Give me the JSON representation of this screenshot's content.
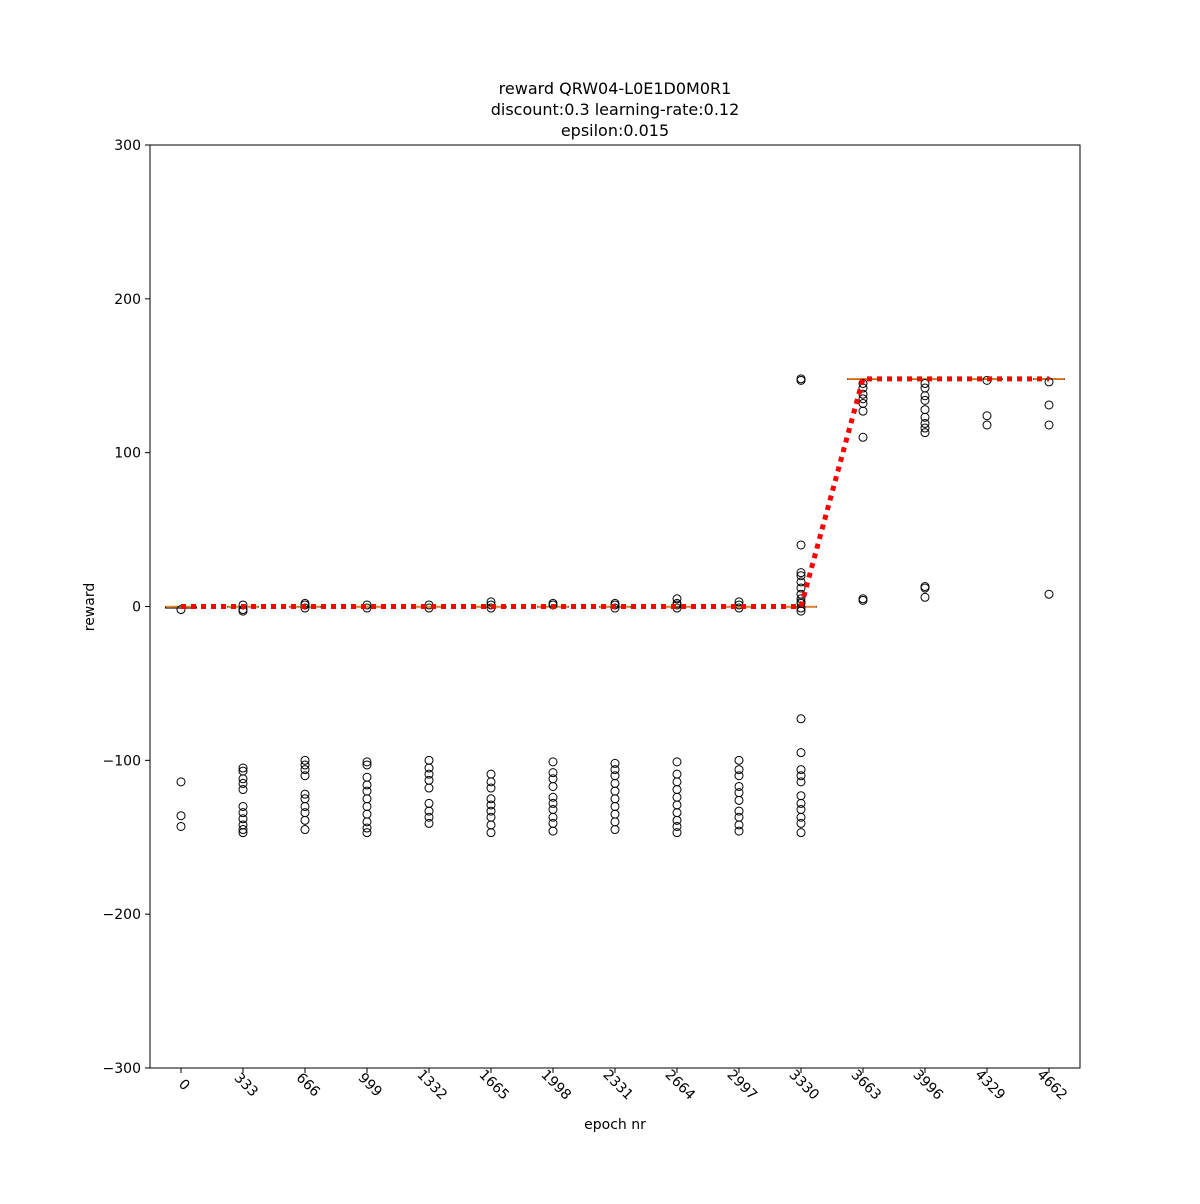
{
  "chart_data": {
    "type": "box",
    "title": [
      "reward QRW04-L0E1D0M0R1",
      "discount:0.3 learning-rate:0.12",
      "epsilon:0.015"
    ],
    "xlabel": "epoch nr",
    "ylabel": "reward",
    "categories": [
      "0",
      "333",
      "666",
      "999",
      "1332",
      "1665",
      "1998",
      "2331",
      "2664",
      "2997",
      "3330",
      "3663",
      "3996",
      "4329",
      "4662"
    ],
    "box_color": "#000000",
    "median_color": "#ff7f0e",
    "outlier_color": "#000000",
    "boxes": [
      {
        "q1": -1,
        "median": 0,
        "q3": 0,
        "whislo": -1,
        "whishi": 0,
        "fliers": [
          -2,
          -114,
          -136,
          -143
        ]
      },
      {
        "q1": 0,
        "median": 0,
        "q3": 0,
        "whislo": 0,
        "whishi": 0,
        "fliers": [
          1,
          -2,
          -3,
          -105,
          -107,
          -112,
          -115,
          -119,
          -130,
          -134,
          -138,
          -142,
          -145,
          -147
        ]
      },
      {
        "q1": 0,
        "median": 0,
        "q3": 0,
        "whislo": 0,
        "whishi": 0,
        "fliers": [
          2,
          1,
          -1,
          -100,
          -103,
          -106,
          -110,
          -122,
          -125,
          -130,
          -134,
          -139,
          -145
        ]
      },
      {
        "q1": 0,
        "median": 0,
        "q3": 0,
        "whislo": 0,
        "whishi": 0,
        "fliers": [
          1,
          -1,
          -101,
          -103,
          -111,
          -116,
          -120,
          -125,
          -130,
          -135,
          -140,
          -144,
          -147
        ]
      },
      {
        "q1": 0,
        "median": 0,
        "q3": 0,
        "whislo": 0,
        "whishi": 0,
        "fliers": [
          1,
          -1,
          -100,
          -105,
          -109,
          -113,
          -118,
          -128,
          -133,
          -137,
          -141
        ]
      },
      {
        "q1": 0,
        "median": 0,
        "q3": 0,
        "whislo": 0,
        "whishi": 0,
        "fliers": [
          3,
          1,
          -1,
          -109,
          -114,
          -118,
          -125,
          -129,
          -133,
          -137,
          -142,
          -147
        ]
      },
      {
        "q1": 0,
        "median": 0,
        "q3": 0,
        "whislo": 0,
        "whishi": 0,
        "fliers": [
          2,
          1,
          -101,
          -108,
          -112,
          -117,
          -124,
          -128,
          -132,
          -137,
          -141,
          -146
        ]
      },
      {
        "q1": 0,
        "median": 0,
        "q3": 0,
        "whislo": 0,
        "whishi": 0,
        "fliers": [
          2,
          1,
          -1,
          -102,
          -106,
          -110,
          -115,
          -120,
          -125,
          -130,
          -135,
          -140,
          -145
        ]
      },
      {
        "q1": 0,
        "median": 0,
        "q3": 0,
        "whislo": 0,
        "whishi": 0,
        "fliers": [
          5,
          2,
          1,
          -1,
          -101,
          -109,
          -114,
          -119,
          -124,
          -129,
          -134,
          -139,
          -143,
          -147
        ]
      },
      {
        "q1": 0,
        "median": 0,
        "q3": 0,
        "whislo": 0,
        "whishi": 0,
        "fliers": [
          3,
          1,
          -1,
          -100,
          -106,
          -110,
          -117,
          -121,
          -126,
          -133,
          -137,
          -142,
          -146
        ]
      },
      {
        "q1": 0,
        "median": 0,
        "q3": 0,
        "whislo": 0,
        "whishi": 0,
        "fliers": [
          148,
          147,
          40,
          22,
          20,
          16,
          12,
          8,
          5,
          3,
          2,
          -1,
          -3,
          -73,
          -95,
          -106,
          -110,
          -114,
          -123,
          -128,
          -132,
          -137,
          -141,
          -147
        ]
      },
      {
        "q1": 148,
        "median": 148,
        "q3": 148,
        "whislo": 148,
        "whishi": 148,
        "fliers": [
          145,
          142,
          138,
          135,
          132,
          127,
          110,
          5,
          4
        ]
      },
      {
        "q1": 148,
        "median": 148,
        "q3": 148,
        "whislo": 148,
        "whishi": 148,
        "fliers": [
          145,
          142,
          137,
          134,
          128,
          123,
          119,
          116,
          113,
          13,
          12,
          6
        ]
      },
      {
        "q1": 148,
        "median": 148,
        "q3": 148,
        "whislo": 148,
        "whishi": 148,
        "fliers": [
          147,
          124,
          118
        ]
      },
      {
        "q1": 148,
        "median": 148,
        "q3": 148,
        "whislo": 148,
        "whishi": 148,
        "fliers": [
          146,
          131,
          118,
          8
        ]
      }
    ],
    "trend": {
      "color": "#ff0000",
      "values": [
        0,
        0,
        0,
        0,
        0,
        0,
        0,
        0,
        0,
        0,
        0,
        148,
        148,
        148,
        148
      ]
    },
    "ylim": [
      -300,
      300
    ],
    "yticks": [
      {
        "value": -300,
        "label": "−300"
      },
      {
        "value": -200,
        "label": "−200"
      },
      {
        "value": -100,
        "label": "−100"
      },
      0,
      100,
      200,
      300
    ]
  }
}
